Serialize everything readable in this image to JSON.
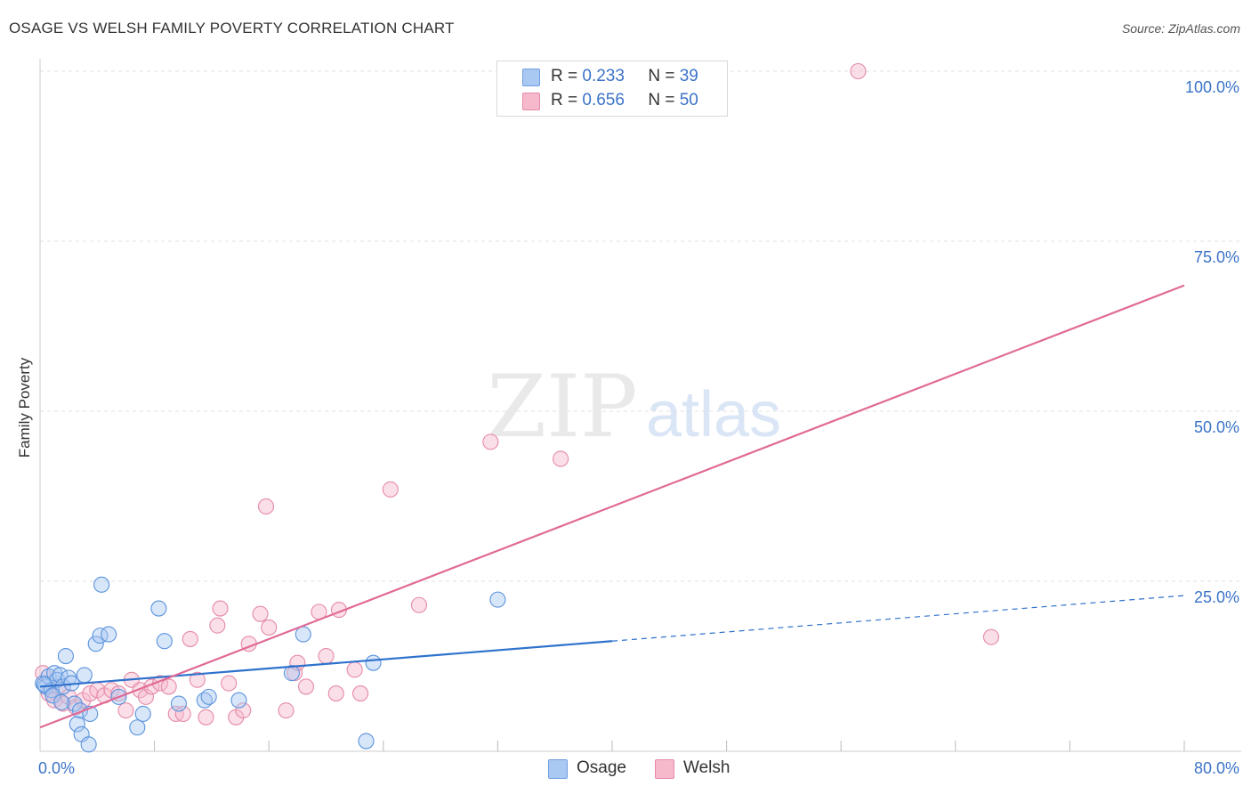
{
  "header": {
    "title": "OSAGE VS WELSH FAMILY POVERTY CORRELATION CHART",
    "source": "Source: ZipAtlas.com"
  },
  "legend": {
    "rows": [
      {
        "r_label": "R =",
        "r_value": "0.233",
        "n_label": "N =",
        "n_value": "39",
        "color": "#a9c8f2"
      },
      {
        "r_label": "R =",
        "r_value": "0.656",
        "n_label": "N =",
        "n_value": "50",
        "color": "#f6b9cb"
      }
    ]
  },
  "bottom_legend": [
    {
      "label": "Osage",
      "color": "#a9c8f2"
    },
    {
      "label": "Welsh",
      "color": "#f6b9cb"
    }
  ],
  "watermark": {
    "zip": "ZIP",
    "atlas": "atlas"
  },
  "chart_data": {
    "type": "scatter",
    "title": "OSAGE VS WELSH FAMILY POVERTY CORRELATION CHART",
    "xlabel": "",
    "ylabel": "Family Poverty",
    "xlim": [
      0,
      80
    ],
    "ylim": [
      0,
      100
    ],
    "x_tick_labels": [
      {
        "value": 0,
        "label": "0.0%"
      },
      {
        "value": 80,
        "label": "80.0%"
      }
    ],
    "y_tick_labels": [
      {
        "value": 25,
        "label": "25.0%"
      },
      {
        "value": 50,
        "label": "50.0%"
      },
      {
        "value": 75,
        "label": "75.0%"
      },
      {
        "value": 100,
        "label": "100.0%"
      }
    ],
    "grid": true,
    "legend_position": "top-center",
    "series": [
      {
        "name": "Osage",
        "color": "#a9c8f2",
        "stroke": "#5b93dc",
        "trend_color": "#2f72cc",
        "trend": {
          "x0": 0,
          "y0": 9.5,
          "x1": 40,
          "y1": 16.2,
          "dashed_to_x": 80,
          "dashed_to_y": 22.9
        },
        "points": [
          [
            0.2,
            10.0
          ],
          [
            0.4,
            9.5
          ],
          [
            0.6,
            11.0
          ],
          [
            0.8,
            9.0
          ],
          [
            1.0,
            11.5
          ],
          [
            1.2,
            10.5
          ],
          [
            1.4,
            11.2
          ],
          [
            1.6,
            9.5
          ],
          [
            1.8,
            14.0
          ],
          [
            2.0,
            10.8
          ],
          [
            2.2,
            10.0
          ],
          [
            2.4,
            7.0
          ],
          [
            2.6,
            4.0
          ],
          [
            2.8,
            6.0
          ],
          [
            2.9,
            2.5
          ],
          [
            3.1,
            11.2
          ],
          [
            3.4,
            1.0
          ],
          [
            3.5,
            5.5
          ],
          [
            3.9,
            15.8
          ],
          [
            4.2,
            17.0
          ],
          [
            4.3,
            24.5
          ],
          [
            4.8,
            17.2
          ],
          [
            5.5,
            8.0
          ],
          [
            6.8,
            3.5
          ],
          [
            7.2,
            5.5
          ],
          [
            8.3,
            21.0
          ],
          [
            8.7,
            16.2
          ],
          [
            9.7,
            7.0
          ],
          [
            11.5,
            7.5
          ],
          [
            11.8,
            8.0
          ],
          [
            13.9,
            7.5
          ],
          [
            17.6,
            11.5
          ],
          [
            18.4,
            17.2
          ],
          [
            22.8,
            1.5
          ],
          [
            23.3,
            13.0
          ],
          [
            32.0,
            22.3
          ],
          [
            0.3,
            9.8
          ],
          [
            0.9,
            8.2
          ],
          [
            1.5,
            7.2
          ]
        ]
      },
      {
        "name": "Welsh",
        "color": "#f6b9cb",
        "stroke": "#e58aa7",
        "trend_color": "#e06a96",
        "trend": {
          "x0": 0,
          "y0": 3.5,
          "x1": 80,
          "y1": 68.5
        },
        "points": [
          [
            0.2,
            11.5
          ],
          [
            0.6,
            8.5
          ],
          [
            1.0,
            7.5
          ],
          [
            1.3,
            9.5
          ],
          [
            1.6,
            7.0
          ],
          [
            2.0,
            8.0
          ],
          [
            2.5,
            6.5
          ],
          [
            3.0,
            7.5
          ],
          [
            3.5,
            8.5
          ],
          [
            4.0,
            9.0
          ],
          [
            4.5,
            8.2
          ],
          [
            5.0,
            9.0
          ],
          [
            5.5,
            8.5
          ],
          [
            6.0,
            6.0
          ],
          [
            6.4,
            10.5
          ],
          [
            7.0,
            9.0
          ],
          [
            7.4,
            8.0
          ],
          [
            7.8,
            9.5
          ],
          [
            8.4,
            10.0
          ],
          [
            9.0,
            9.5
          ],
          [
            9.5,
            5.5
          ],
          [
            10.0,
            5.5
          ],
          [
            10.5,
            16.5
          ],
          [
            11.0,
            10.5
          ],
          [
            11.6,
            5.0
          ],
          [
            12.4,
            18.5
          ],
          [
            12.6,
            21.0
          ],
          [
            13.2,
            10.0
          ],
          [
            13.7,
            5.0
          ],
          [
            14.2,
            6.0
          ],
          [
            14.6,
            15.8
          ],
          [
            15.4,
            20.2
          ],
          [
            15.8,
            36.0
          ],
          [
            16.0,
            18.2
          ],
          [
            17.2,
            6.0
          ],
          [
            17.8,
            11.5
          ],
          [
            18.0,
            13.0
          ],
          [
            18.6,
            9.5
          ],
          [
            19.5,
            20.5
          ],
          [
            20.0,
            14.0
          ],
          [
            20.7,
            8.5
          ],
          [
            20.9,
            20.8
          ],
          [
            22.0,
            12.0
          ],
          [
            22.4,
            8.5
          ],
          [
            24.5,
            38.5
          ],
          [
            26.5,
            21.5
          ],
          [
            31.5,
            45.5
          ],
          [
            36.4,
            43.0
          ],
          [
            57.2,
            100.0
          ],
          [
            66.5,
            16.8
          ]
        ]
      }
    ]
  }
}
